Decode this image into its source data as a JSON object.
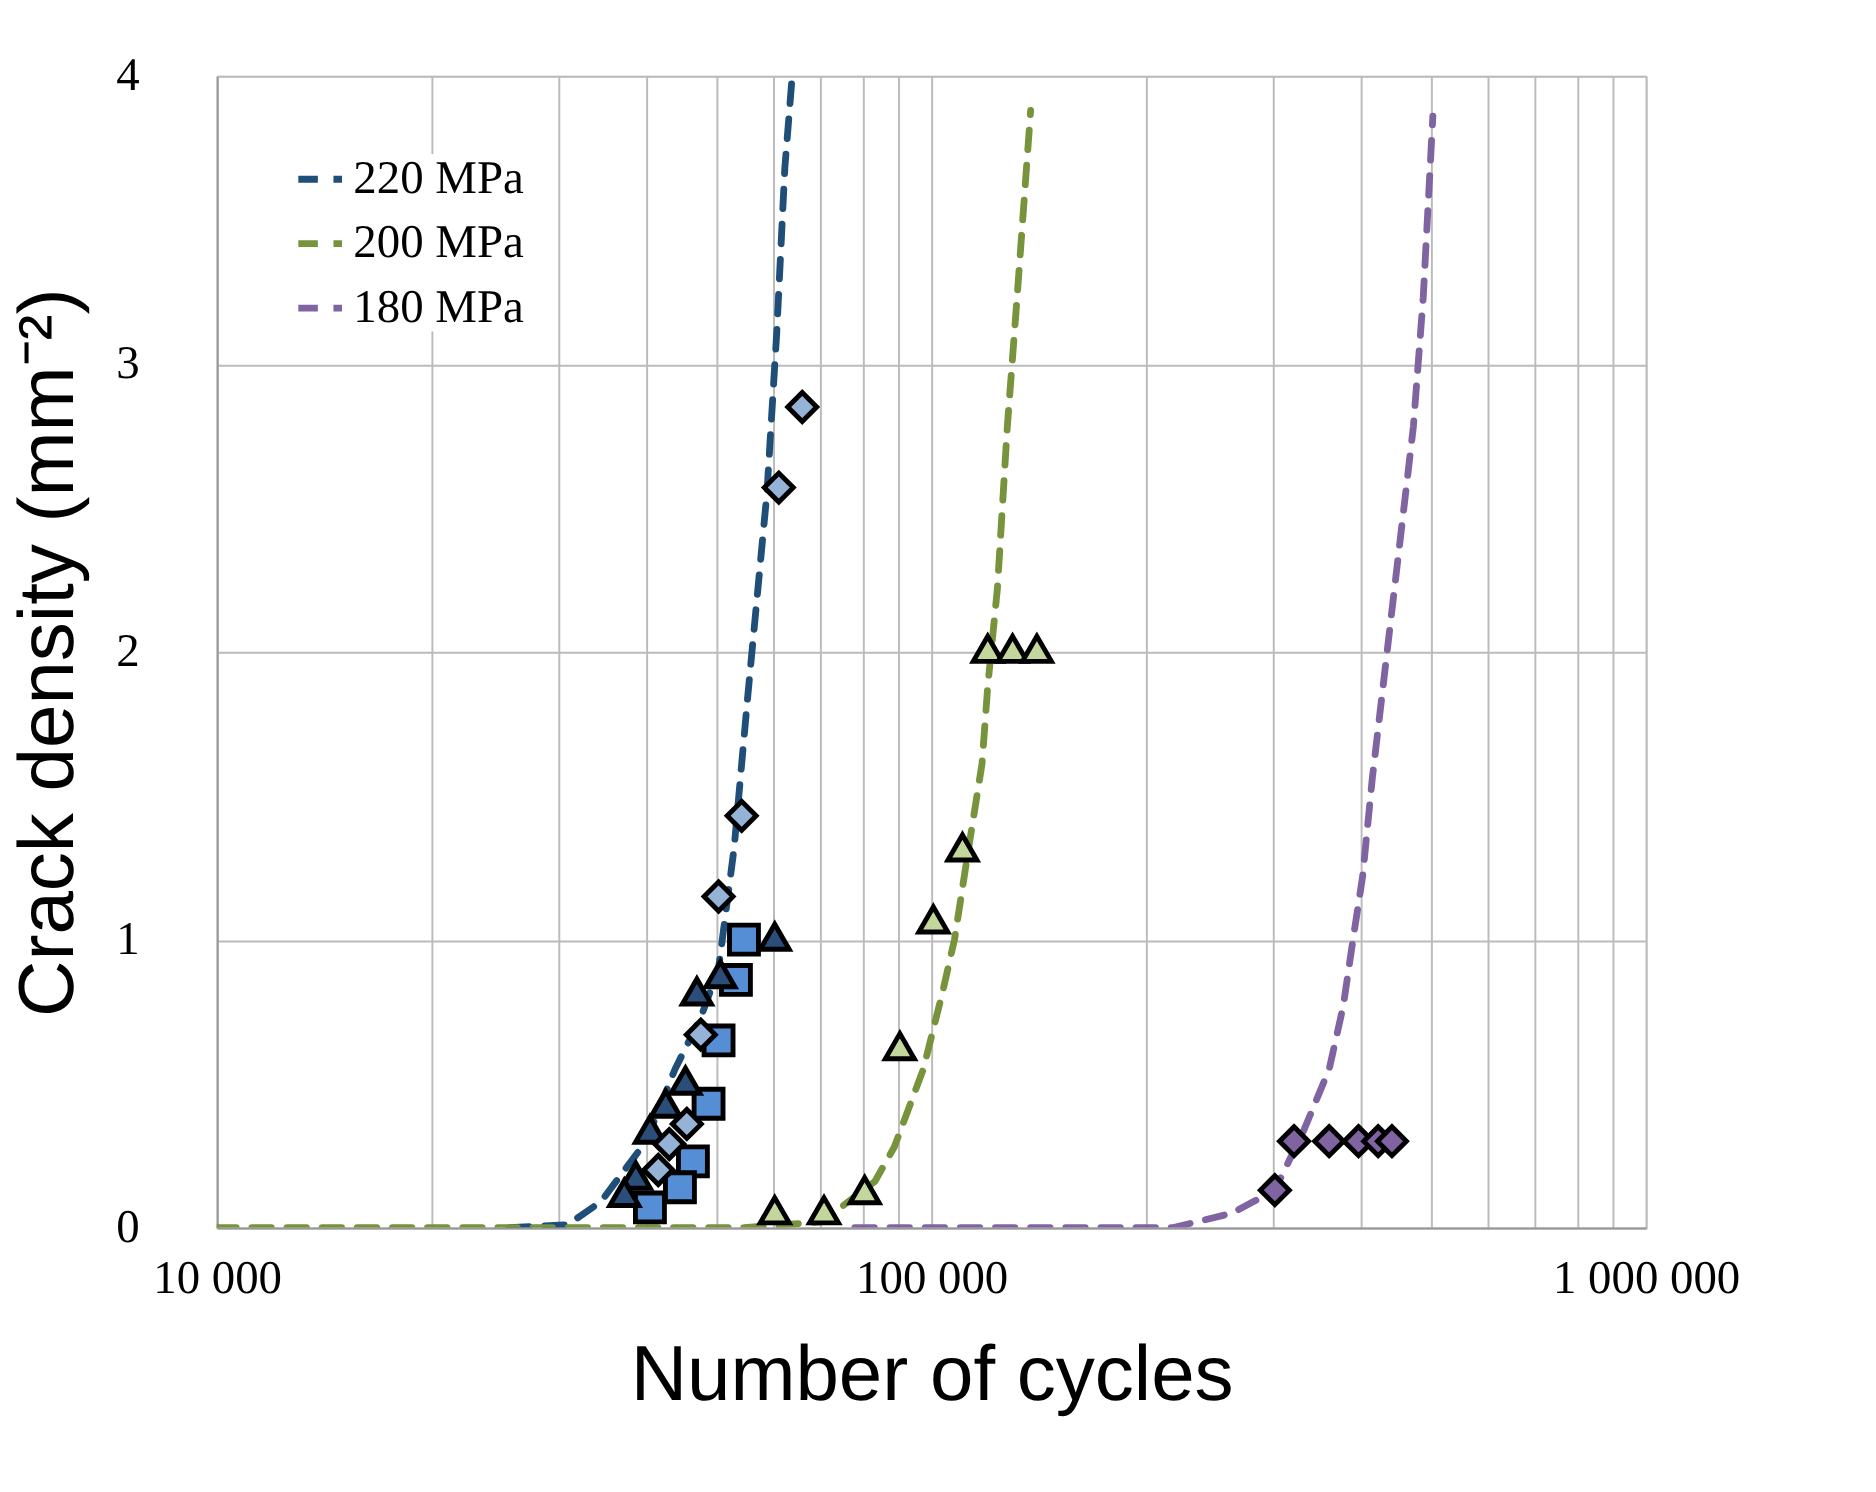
{
  "chart_data": {
    "type": "scatter",
    "xlabel": "Number of cycles",
    "ylabel": "Crack density (mm⁻²)",
    "log": "x",
    "grid": true,
    "legend": "top left",
    "xlim": [
      10000,
      1000000
    ],
    "ylim": [
      0,
      4
    ],
    "yticks": [
      0,
      1,
      2,
      3,
      4
    ],
    "xticks": [
      {
        "value": 10000,
        "label": "10 000"
      },
      {
        "value": 20000,
        "label": null
      },
      {
        "value": 30000,
        "label": null
      },
      {
        "value": 40000,
        "label": null
      },
      {
        "value": 50000,
        "label": null
      },
      {
        "value": 60000,
        "label": null
      },
      {
        "value": 70000,
        "label": null
      },
      {
        "value": 80000,
        "label": null
      },
      {
        "value": 90000,
        "label": null
      },
      {
        "value": 100000,
        "label": "100 000"
      },
      {
        "value": 200000,
        "label": null
      },
      {
        "value": 300000,
        "label": null
      },
      {
        "value": 400000,
        "label": null
      },
      {
        "value": 500000,
        "label": null
      },
      {
        "value": 600000,
        "label": null
      },
      {
        "value": 700000,
        "label": null
      },
      {
        "value": 800000,
        "label": null
      },
      {
        "value": 900000,
        "label": null
      },
      {
        "value": 1000000,
        "label": "1 000 000"
      }
    ],
    "series": [
      {
        "name": "220 MPa",
        "type": "line",
        "line_style": "dashed",
        "marker": "none",
        "color": "#1f4e79",
        "x": [
          25700,
          31000,
          34500,
          39900,
          43800,
          47600,
          50400,
          53000,
          55300,
          58900,
          60800,
          62400,
          63900
        ],
        "values": [
          0,
          0.01,
          0.09,
          0.3,
          0.55,
          0.73,
          0.9,
          1.32,
          1.83,
          2.55,
          3.11,
          3.68,
          4.0
        ]
      },
      {
        "name": "200 MPa",
        "type": "line",
        "line_style": "dashed",
        "marker": "none",
        "color": "#77933c",
        "x": [
          10000,
          54700,
          70300,
          83400,
          88800,
          97500,
          103800,
          107800,
          112700,
          117800,
          120000,
          123800,
          127800,
          131900,
          137800
        ],
        "values": [
          0,
          0,
          0.02,
          0.16,
          0.28,
          0.55,
          0.82,
          1.0,
          1.31,
          1.61,
          1.88,
          2.22,
          2.78,
          3.23,
          3.88
        ]
      },
      {
        "name": "180 MPa",
        "type": "line",
        "line_style": "dashed",
        "marker": "none",
        "color": "#8064a2",
        "x": [
          78200,
          218300,
          263700,
          302700,
          332600,
          360600,
          377400,
          389400,
          401700,
          414400,
          473000,
          488300,
          503700
        ],
        "values": [
          0,
          0,
          0.05,
          0.13,
          0.34,
          0.55,
          0.77,
          1.0,
          1.22,
          1.56,
          2.78,
          3.23,
          3.86
        ]
      },
      {
        "marker": "square",
        "color": "#558ed5",
        "x": [
          54700,
          53300,
          50400,
          48800,
          46400,
          44500,
          40400
        ],
        "values": [
          1.0,
          0.86,
          0.65,
          0.43,
          0.23,
          0.14,
          0.07
        ]
      },
      {
        "marker": "triangle",
        "color": "#2a4d7a",
        "x": [
          60400,
          50700,
          47000,
          45300,
          42500,
          40400,
          38600,
          37200
        ],
        "values": [
          1.01,
          0.88,
          0.82,
          0.51,
          0.43,
          0.34,
          0.18,
          0.12
        ]
      },
      {
        "marker": "diamond",
        "color": "#95b3d7",
        "x": [
          66000,
          61200,
          54300,
          50400,
          47600,
          45500,
          43000,
          41500
        ],
        "values": [
          2.85,
          2.57,
          1.43,
          1.15,
          0.67,
          0.36,
          0.29,
          0.2
        ]
      },
      {
        "marker": "triangle",
        "color": "#c3d69b",
        "x": [
          60400,
          70800,
          80700,
          90400,
          100700,
          110600,
          120000,
          130000,
          140600
        ],
        "values": [
          0.06,
          0.06,
          0.13,
          0.63,
          1.07,
          1.32,
          2.01,
          2.01,
          2.01
        ]
      },
      {
        "marker": "diamond",
        "color": "#8064a2",
        "x": [
          302700,
          322000,
          360600,
          396400,
          422300,
          441500
        ],
        "values": [
          0.13,
          0.3,
          0.3,
          0.3,
          0.3,
          0.3
        ]
      }
    ]
  }
}
